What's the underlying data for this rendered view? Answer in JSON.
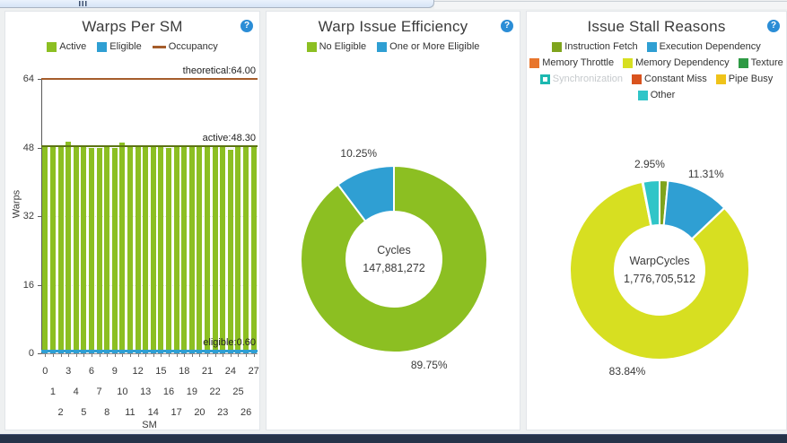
{
  "ui": {
    "help_glyph": "?"
  },
  "chart_data": [
    {
      "id": "warps_per_sm",
      "type": "bar",
      "title": "Warps Per SM",
      "xlabel": "SM",
      "ylabel": "Warps",
      "ylim": [
        0,
        64
      ],
      "yticks": [
        0,
        16,
        32,
        48,
        64
      ],
      "categories": [
        "0",
        "1",
        "2",
        "3",
        "4",
        "5",
        "6",
        "7",
        "8",
        "9",
        "10",
        "11",
        "12",
        "13",
        "14",
        "15",
        "16",
        "17",
        "18",
        "19",
        "20",
        "21",
        "22",
        "23",
        "24",
        "25",
        "26",
        "27"
      ],
      "legend": [
        {
          "label": "Active",
          "color": "#8cbf22",
          "swatch": "square"
        },
        {
          "label": "Eligible",
          "color": "#2f9fd3",
          "swatch": "square"
        },
        {
          "label": "Occupancy",
          "color": "#a55d2b",
          "swatch": "line"
        }
      ],
      "series": [
        {
          "name": "Active",
          "color": "#8cbf22",
          "values": [
            48.2,
            48.3,
            48.3,
            49.3,
            48.6,
            48.3,
            47.9,
            48.0,
            48.2,
            48.0,
            49.2,
            48.3,
            48.3,
            48.2,
            48.3,
            48.3,
            48.0,
            48.5,
            48.3,
            48.3,
            48.6,
            48.2,
            48.3,
            48.3,
            47.5,
            48.6,
            48.3,
            48.2
          ]
        },
        {
          "name": "Eligible",
          "color": "#2f9fd3",
          "values": [
            0.6,
            0.6,
            0.6,
            0.6,
            0.6,
            0.6,
            0.6,
            0.6,
            0.6,
            0.6,
            0.6,
            0.6,
            0.6,
            0.6,
            0.6,
            0.6,
            0.6,
            0.6,
            0.6,
            0.6,
            0.6,
            0.6,
            0.6,
            0.6,
            0.6,
            0.6,
            0.6,
            0.6
          ]
        }
      ],
      "reference_lines": [
        {
          "name": "theoretical",
          "label": "theoretical:64.00",
          "value": 64.0,
          "color": "#a55d2b",
          "thickness": 2
        },
        {
          "name": "active",
          "label": "active:48.30",
          "value": 48.3,
          "color": "#5c7414",
          "thickness": 2
        },
        {
          "name": "eligible",
          "label": "eligible:0.60",
          "value": 0.6,
          "color": "#2f9fd3",
          "thickness": 3
        }
      ]
    },
    {
      "id": "warp_issue_efficiency",
      "type": "pie",
      "title": "Warp Issue Efficiency",
      "center_label": "Cycles",
      "center_value": "147,881,272",
      "slices": [
        {
          "name": "No Eligible",
          "value": 89.75,
          "label": "89.75%",
          "color": "#8cbf22"
        },
        {
          "name": "One or More Eligible",
          "value": 10.25,
          "label": "10.25%",
          "color": "#2f9fd3"
        }
      ]
    },
    {
      "id": "issue_stall_reasons",
      "type": "pie",
      "title": "Issue Stall Reasons",
      "center_label": "WarpCycles",
      "center_value": "1,776,705,512",
      "slices": [
        {
          "name": "Instruction Fetch",
          "value": 1.5,
          "label": "",
          "color": "#7fa41d"
        },
        {
          "name": "Execution Dependency",
          "value": 11.31,
          "label": "11.31%",
          "color": "#2f9fd3"
        },
        {
          "name": "Memory Throttle",
          "value": 0.05,
          "label": "",
          "color": "#e8762c"
        },
        {
          "name": "Memory Dependency",
          "value": 83.84,
          "label": "83.84%",
          "color": "#d7df21"
        },
        {
          "name": "Texture",
          "value": 0.05,
          "label": "",
          "color": "#2e9a44"
        },
        {
          "name": "Synchronization",
          "value": 0.0,
          "label": "",
          "color": "#1cb8b0",
          "disabled": true
        },
        {
          "name": "Constant Miss",
          "value": 0.05,
          "label": "",
          "color": "#d9531e"
        },
        {
          "name": "Pipe Busy",
          "value": 0.05,
          "label": "",
          "color": "#efc319"
        },
        {
          "name": "Other",
          "value": 2.95,
          "label": "2.95%",
          "color": "#30c5c8"
        }
      ]
    }
  ]
}
